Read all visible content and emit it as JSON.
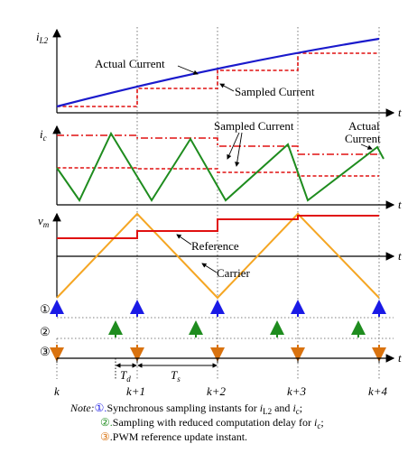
{
  "panel1": {
    "y_label": "i",
    "y_label_sub": "L2",
    "actual_label": "Actual Current",
    "sampled_label": "Sampled Current"
  },
  "panel2": {
    "y_label": "i",
    "y_label_sub": "c",
    "sampled_label": "Sampled Current",
    "actual_label_line1": "Actual",
    "actual_label_line2": "Current"
  },
  "panel3": {
    "y_label": "v",
    "y_label_sub": "m",
    "reference_label": "Reference",
    "carrier_label": "Carrier"
  },
  "axis_t_label": "t",
  "markers": {
    "m1": "①",
    "m2": "②",
    "m3": "③"
  },
  "td_label": "T",
  "td_sub": "d",
  "ts_label": "T",
  "ts_sub": "s",
  "k_labels": [
    "k",
    "k+1",
    "k+2",
    "k+3",
    "k+4"
  ],
  "note": {
    "prefix": "Note:",
    "line1_a": "Synchronous sampling instants for ",
    "line1_i1": "i",
    "line1_s1": "L2",
    "line1_b": " and ",
    "line1_i2": "i",
    "line1_s2": "c",
    "line1_c": ";",
    "line2_a": "Sampling with reduced computation delay for ",
    "line2_i": "i",
    "line2_s": "c",
    "line2_b": ";",
    "line3": ".PWM reference update instant.",
    "num1": "①.",
    "num2": "②.",
    "num3": "③"
  },
  "colors": {
    "actual": "#1a1acc",
    "sampled": "#e01010",
    "carrier": "#f5a623",
    "triangle": "#1e8c1e",
    "m1": "#1a1ae6",
    "m2": "#1e8c1e",
    "m3": "#d9720e"
  }
}
